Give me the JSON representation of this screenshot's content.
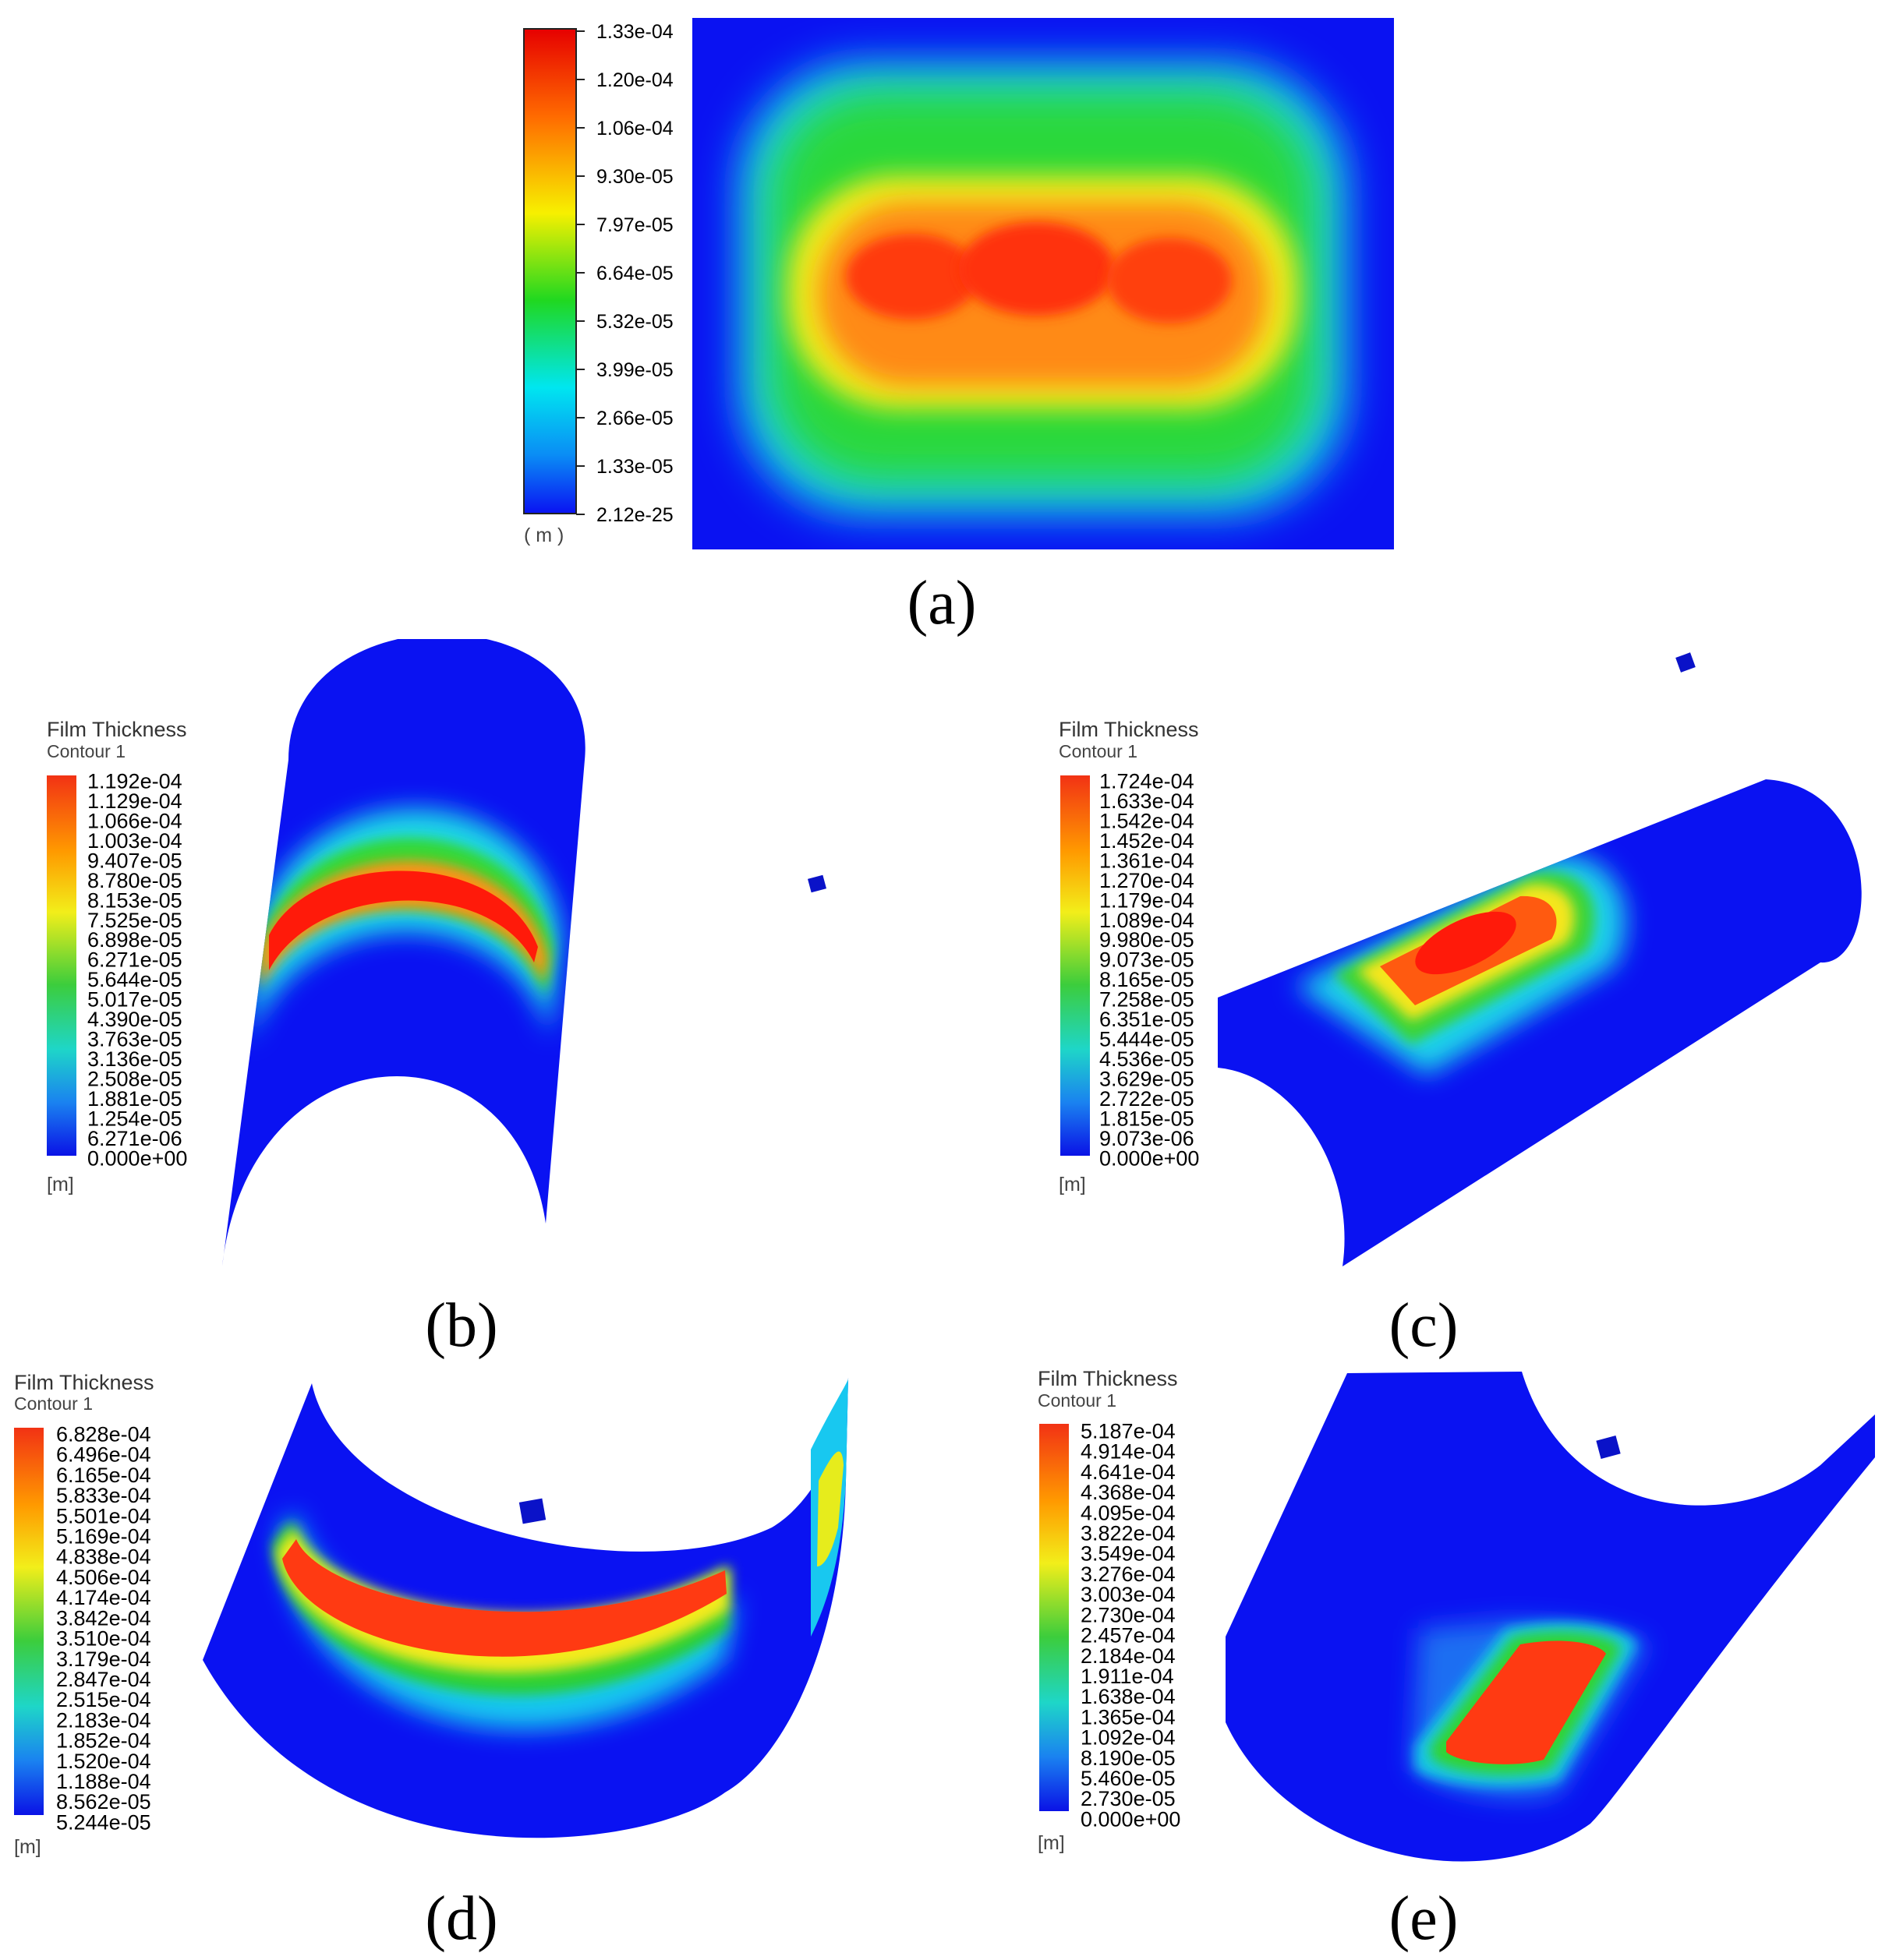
{
  "panels": [
    {
      "id": "a",
      "caption": "(a)",
      "legend_title": "",
      "legend_subtitle": "",
      "unit": "( m )",
      "ticks": [
        "1.33e-04",
        "1.20e-04",
        "1.06e-04",
        "9.30e-05",
        "7.97e-05",
        "6.64e-05",
        "5.32e-05",
        "3.99e-05",
        "2.66e-05",
        "1.33e-05",
        "2.12e-25"
      ]
    },
    {
      "id": "b",
      "caption": "(b)",
      "legend_title": "Film Thickness",
      "legend_subtitle": "Contour 1",
      "unit": "[m]",
      "ticks": [
        "1.192e-04",
        "1.129e-04",
        "1.066e-04",
        "1.003e-04",
        "9.407e-05",
        "8.780e-05",
        "8.153e-05",
        "7.525e-05",
        "6.898e-05",
        "6.271e-05",
        "5.644e-05",
        "5.017e-05",
        "4.390e-05",
        "3.763e-05",
        "3.136e-05",
        "2.508e-05",
        "1.881e-05",
        "1.254e-05",
        "6.271e-06",
        "0.000e+00"
      ]
    },
    {
      "id": "c",
      "caption": "(c)",
      "legend_title": "Film Thickness",
      "legend_subtitle": "Contour 1",
      "unit": "[m]",
      "ticks": [
        "1.724e-04",
        "1.633e-04",
        "1.542e-04",
        "1.452e-04",
        "1.361e-04",
        "1.270e-04",
        "1.179e-04",
        "1.089e-04",
        "9.980e-05",
        "9.073e-05",
        "8.165e-05",
        "7.258e-05",
        "6.351e-05",
        "5.444e-05",
        "4.536e-05",
        "3.629e-05",
        "2.722e-05",
        "1.815e-05",
        "9.073e-06",
        "0.000e+00"
      ]
    },
    {
      "id": "d",
      "caption": "(d)",
      "legend_title": "Film Thickness",
      "legend_subtitle": "Contour 1",
      "unit": "[m]",
      "ticks": [
        "6.828e-04",
        "6.496e-04",
        "6.165e-04",
        "5.833e-04",
        "5.501e-04",
        "5.169e-04",
        "4.838e-04",
        "4.506e-04",
        "4.174e-04",
        "3.842e-04",
        "3.510e-04",
        "3.179e-04",
        "2.847e-04",
        "2.515e-04",
        "2.183e-04",
        "1.852e-04",
        "1.520e-04",
        "1.188e-04",
        "8.562e-05",
        "5.244e-05"
      ]
    },
    {
      "id": "e",
      "caption": "(e)",
      "legend_title": "Film Thickness",
      "legend_subtitle": "Contour 1",
      "unit": "[m]",
      "ticks": [
        "5.187e-04",
        "4.914e-04",
        "4.641e-04",
        "4.368e-04",
        "4.095e-04",
        "3.822e-04",
        "3.549e-04",
        "3.276e-04",
        "3.003e-04",
        "2.730e-04",
        "2.457e-04",
        "2.184e-04",
        "1.911e-04",
        "1.638e-04",
        "1.365e-04",
        "1.092e-04",
        "8.190e-05",
        "5.460e-05",
        "2.730e-05",
        "0.000e+00"
      ]
    }
  ],
  "colors": {
    "base_blue": "#0a12f2",
    "cyan": "#1ee8f0",
    "green": "#22e022",
    "yellow": "#f5f01c",
    "orange": "#ff8c10",
    "red": "#ff1a0a"
  }
}
